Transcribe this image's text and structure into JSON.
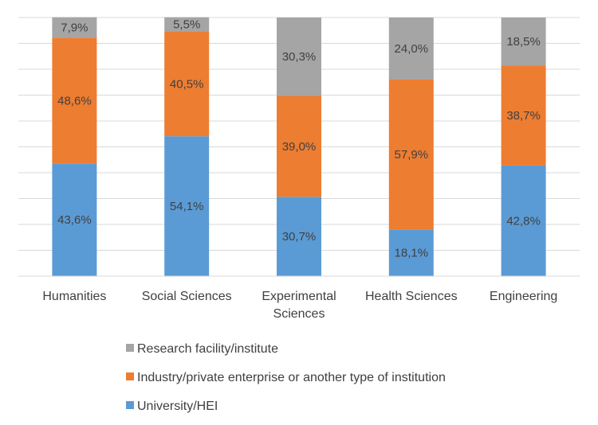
{
  "chart_data": {
    "type": "bar",
    "stacked": true,
    "normalized": true,
    "title": "",
    "xlabel": "",
    "ylabel": "",
    "ylim": [
      0,
      100
    ],
    "grid": true,
    "legend_position": "bottom-center",
    "categories": [
      [
        "Humanities"
      ],
      [
        "Social Sciences"
      ],
      [
        "Experimental",
        "Sciences"
      ],
      [
        "Health Sciences"
      ],
      [
        "Engineering"
      ]
    ],
    "series": [
      {
        "name": "University/HEI",
        "color": "#5B9BD5",
        "values": [
          43.6,
          54.1,
          30.7,
          18.1,
          42.8
        ],
        "labels": [
          "43,6%",
          "54,1%",
          "30,7%",
          "18,1%",
          "42,8%"
        ]
      },
      {
        "name": "Industry/private enterprise or another type of institution",
        "color": "#ED7D31",
        "values": [
          48.6,
          40.5,
          39.0,
          57.9,
          38.7
        ],
        "labels": [
          "48,6%",
          "40,5%",
          "39,0%",
          "57,9%",
          "38,7%"
        ]
      },
      {
        "name": "Research facility/institute",
        "color": "#A5A5A5",
        "values": [
          7.9,
          5.5,
          30.3,
          24.0,
          18.5
        ],
        "labels": [
          "7,9%",
          "5,5%",
          "30,3%",
          "24,0%",
          "18,5%"
        ]
      }
    ],
    "legend_order": [
      2,
      1,
      0
    ]
  }
}
